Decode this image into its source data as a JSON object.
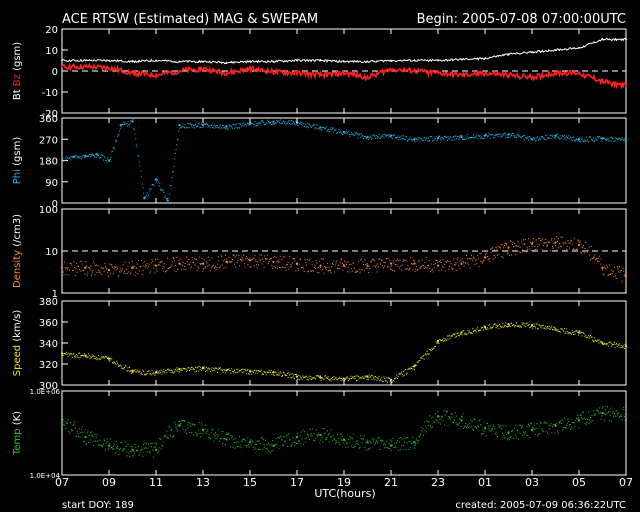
{
  "header": {
    "title": "ACE RTSW (Estimated) MAG & SWEPAM",
    "begin": "Begin: 2005-07-08 07:00:00UTC"
  },
  "footer": {
    "start_doy": "start DOY: 189",
    "created": "created: 2005-07-09 06:36:22UTC"
  },
  "x_axis": {
    "label": "UTC(hours)",
    "ticks": [
      "07",
      "09",
      "11",
      "13",
      "15",
      "17",
      "19",
      "21",
      "23",
      "01",
      "03",
      "05",
      "07"
    ],
    "range_hours": [
      0,
      24
    ]
  },
  "colors": {
    "bt": "#ffffff",
    "bz": "#ff2020",
    "phi": "#20b4e6",
    "density": "#ff8c28",
    "speed": "#e6e628",
    "temp": "#28c828",
    "frame": "#ffffff"
  },
  "chart_data": [
    {
      "type": "line",
      "id": "mag",
      "ylabel_parts": [
        "Bt",
        "Bz",
        "(gsm)"
      ],
      "ylim": [
        -20,
        20
      ],
      "yticks": [
        20,
        10,
        0,
        -10,
        -20
      ],
      "dashed_zero": true,
      "series": [
        {
          "name": "Bt",
          "x": [
            0,
            1,
            2,
            3,
            4,
            5,
            6,
            7,
            8,
            9,
            10,
            11,
            12,
            13,
            14,
            15,
            16,
            17,
            18,
            19,
            20,
            21,
            22,
            23,
            24
          ],
          "values": [
            5,
            5,
            5,
            4.5,
            5,
            4.5,
            4.5,
            4,
            4.5,
            4.5,
            5,
            5,
            4.5,
            4.5,
            5,
            5,
            5,
            5.5,
            6,
            8,
            9,
            10,
            11,
            15,
            15
          ]
        },
        {
          "name": "Bz",
          "x": [
            0,
            1,
            2,
            3,
            4,
            5,
            6,
            7,
            8,
            9,
            10,
            11,
            12,
            13,
            14,
            15,
            16,
            17,
            18,
            19,
            20,
            21,
            22,
            23,
            24
          ],
          "values": [
            2,
            2,
            1.5,
            -1,
            -2,
            0,
            1,
            -1,
            1,
            -0.5,
            -1,
            -2,
            -1,
            -3,
            1,
            0,
            -1,
            -2,
            -1,
            -2,
            -3,
            -1,
            -1,
            -5,
            -7
          ]
        }
      ]
    },
    {
      "type": "scatter",
      "id": "phi",
      "ylabel_parts": [
        "Phi",
        "(gsm)"
      ],
      "ylim": [
        0,
        360
      ],
      "yticks": [
        360,
        270,
        180,
        90,
        0
      ],
      "series": [
        {
          "name": "Phi",
          "x": [
            0,
            0.5,
            1,
            1.5,
            2,
            2.5,
            3,
            3.5,
            4,
            4.5,
            5,
            6,
            7,
            8,
            9,
            10,
            11,
            12,
            13,
            14,
            15,
            16,
            17,
            18,
            19,
            20,
            21,
            22,
            23,
            24
          ],
          "values": [
            185,
            195,
            200,
            205,
            180,
            330,
            345,
            20,
            100,
            10,
            330,
            330,
            325,
            335,
            345,
            340,
            320,
            300,
            280,
            285,
            270,
            275,
            280,
            285,
            290,
            270,
            285,
            270,
            275,
            270
          ]
        }
      ]
    },
    {
      "type": "scatter",
      "id": "density",
      "ylabel_parts": [
        "Density",
        "(/cm3)"
      ],
      "yscale": "log",
      "ylim": [
        1,
        100
      ],
      "yticks": [
        100,
        10,
        1
      ],
      "dashed_ref": 10,
      "series": [
        {
          "name": "Density",
          "x": [
            0,
            1,
            2,
            3,
            4,
            5,
            6,
            7,
            8,
            9,
            10,
            11,
            12,
            13,
            14,
            15,
            16,
            17,
            18,
            19,
            20,
            21,
            22,
            23,
            24
          ],
          "values": [
            4,
            4,
            3.5,
            4,
            4.5,
            5,
            5,
            5.5,
            6,
            5.5,
            5,
            4.5,
            4.5,
            4.5,
            5,
            5,
            4.5,
            5,
            7,
            12,
            15,
            16,
            14,
            4,
            2.5
          ]
        }
      ]
    },
    {
      "type": "scatter",
      "id": "speed",
      "ylabel_parts": [
        "Speed",
        "(km/s)"
      ],
      "ylim": [
        300,
        380
      ],
      "yticks": [
        380,
        360,
        340,
        320,
        300
      ],
      "series": [
        {
          "name": "Speed",
          "x": [
            0,
            1,
            2,
            3,
            4,
            5,
            6,
            7,
            8,
            9,
            10,
            11,
            12,
            13,
            14,
            15,
            16,
            17,
            18,
            19,
            20,
            21,
            22,
            23,
            24
          ],
          "values": [
            330,
            328,
            325,
            313,
            312,
            315,
            316,
            314,
            313,
            312,
            308,
            307,
            306,
            308,
            305,
            318,
            342,
            350,
            355,
            358,
            357,
            353,
            350,
            340,
            337
          ]
        }
      ]
    },
    {
      "type": "scatter",
      "id": "temp",
      "ylabel_parts": [
        "Temp",
        "(K)"
      ],
      "yscale": "log",
      "ylim": [
        10000,
        1000000
      ],
      "ytick_labels": [
        "1.0E+06",
        "1.0E+04"
      ],
      "series": [
        {
          "name": "Temp",
          "x": [
            0,
            1,
            2,
            3,
            4,
            5,
            6,
            7,
            8,
            9,
            10,
            11,
            12,
            13,
            14,
            15,
            16,
            17,
            18,
            19,
            20,
            21,
            22,
            23,
            24
          ],
          "values": [
            180000,
            80000,
            50000,
            40000,
            40000,
            150000,
            120000,
            70000,
            60000,
            50000,
            80000,
            90000,
            70000,
            60000,
            50000,
            60000,
            250000,
            200000,
            130000,
            100000,
            120000,
            150000,
            200000,
            300000,
            280000
          ]
        }
      ]
    }
  ]
}
